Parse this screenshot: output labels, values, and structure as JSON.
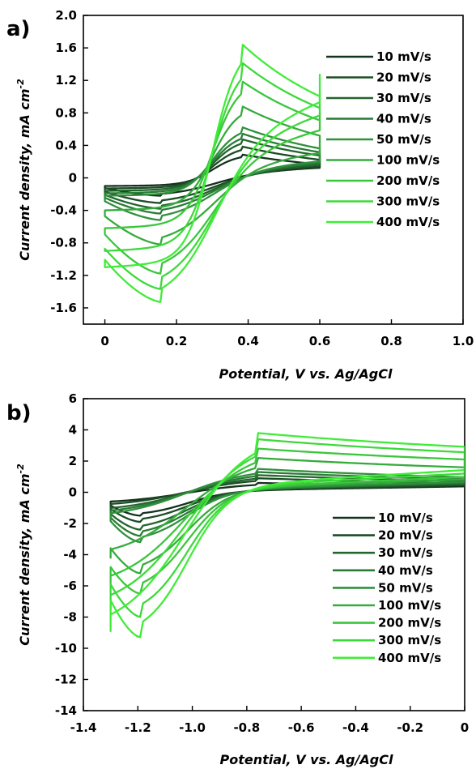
{
  "chart_data": [
    {
      "panel_label": "a)",
      "type": "line",
      "xlabel": "Potential, V vs. Ag/AgCl",
      "ylabel": "Current density, mA cm",
      "ylabel_sup": "-2",
      "xlim": [
        -0.06,
        1.0
      ],
      "ylim": [
        -1.8,
        2.0
      ],
      "xticks": [
        "0",
        "0.2",
        "0.4",
        "0.6",
        "0.8",
        "1.0"
      ],
      "xtick_values": [
        0,
        0.2,
        0.4,
        0.6,
        0.8,
        1.0
      ],
      "yticks": [
        "2.0",
        "1.6",
        "1.2",
        "0.8",
        "0.4",
        "0",
        "-0.4",
        "-0.8",
        "-1.2",
        "-1.6"
      ],
      "ytick_values": [
        2.0,
        1.6,
        1.2,
        0.8,
        0.4,
        0,
        -0.4,
        -0.8,
        -1.2,
        -1.6
      ],
      "legend_position": "right",
      "cv": {
        "E_start": 0.0,
        "E_end": 0.6,
        "E_anodic_peak": 0.38,
        "E_cathodic_peak": 0.16,
        "E_half": 0.3
      },
      "series": [
        {
          "name": "10 mV/s",
          "color": "#13321b",
          "ipa": 0.29,
          "ipc": -0.22,
          "i_start": -0.1,
          "i_end": 0.17
        },
        {
          "name": "20 mV/s",
          "color": "#1b4d24",
          "ipa": 0.39,
          "ipc": -0.31,
          "i_start": -0.13,
          "i_end": 0.19
        },
        {
          "name": "30 mV/s",
          "color": "#22652d",
          "ipa": 0.48,
          "ipc": -0.38,
          "i_start": -0.16,
          "i_end": 0.22
        },
        {
          "name": "40 mV/s",
          "color": "#297c35",
          "ipa": 0.55,
          "ipc": -0.44,
          "i_start": -0.19,
          "i_end": 0.25
        },
        {
          "name": "50 mV/s",
          "color": "#2f913c",
          "ipa": 0.63,
          "ipc": -0.52,
          "i_start": -0.22,
          "i_end": 0.28
        },
        {
          "name": "100 mV/s",
          "color": "#36ab3d",
          "ipa": 0.89,
          "ipc": -0.82,
          "i_start": -0.4,
          "i_end": 0.42
        },
        {
          "name": "200 mV/s",
          "color": "#3bc63c",
          "ipa": 1.2,
          "ipc": -1.18,
          "i_start": -0.62,
          "i_end": 0.8
        },
        {
          "name": "300 mV/s",
          "color": "#3ed93a",
          "ipa": 1.43,
          "ipc": -1.37,
          "i_start": -0.9,
          "i_end": 1.05
        },
        {
          "name": "400 mV/s",
          "color": "#40ec38",
          "ipa": 1.66,
          "ipc": -1.53,
          "i_start": -1.1,
          "i_end": 1.27
        }
      ]
    },
    {
      "panel_label": "b)",
      "type": "line",
      "xlabel": "Potential, V vs. Ag/AgCl",
      "ylabel": "Current density, mA cm",
      "ylabel_sup": "-2",
      "xlim": [
        -1.4,
        0
      ],
      "ylim": [
        -14,
        6
      ],
      "xticks": [
        "-1.4",
        "-1.2",
        "-1.0",
        "-0.8",
        "-0.6",
        "-0.4",
        "-0.2",
        "0"
      ],
      "xtick_values": [
        -1.4,
        -1.2,
        -1.0,
        -0.8,
        -0.6,
        -0.4,
        -0.2,
        0
      ],
      "yticks": [
        "6",
        "4",
        "2",
        "0",
        "-2",
        "-4",
        "-6",
        "-8",
        "-10",
        "-12",
        "-14"
      ],
      "ytick_values": [
        6,
        4,
        2,
        0,
        -2,
        -4,
        -6,
        -8,
        -10,
        -12,
        -14
      ],
      "legend_position": "lower-right",
      "cv": {
        "E_start": -1.3,
        "E_end": 0.0,
        "E_anodic_peak": -0.76,
        "E_cathodic_peak": -1.19,
        "E_half": -1.02
      },
      "series": [
        {
          "name": "10 mV/s",
          "color": "#13321b",
          "ipa": 0.6,
          "ipc": -1.5,
          "i_start": -0.7,
          "i_end": 0.5
        },
        {
          "name": "20 mV/s",
          "color": "#1b4d24",
          "ipa": 0.9,
          "ipc": -1.9,
          "i_start": -0.9,
          "i_end": 0.6
        },
        {
          "name": "30 mV/s",
          "color": "#22652d",
          "ipa": 1.1,
          "ipc": -2.4,
          "i_start": -1.2,
          "i_end": 0.7
        },
        {
          "name": "40 mV/s",
          "color": "#297c35",
          "ipa": 1.3,
          "ipc": -2.8,
          "i_start": -1.4,
          "i_end": 0.8
        },
        {
          "name": "50 mV/s",
          "color": "#2f913c",
          "ipa": 1.5,
          "ipc": -3.2,
          "i_start": -1.6,
          "i_end": 0.9
        },
        {
          "name": "100 mV/s",
          "color": "#36ab3d",
          "ipa": 2.2,
          "ipc": -5.2,
          "i_start": -4.2,
          "i_end": 1.1
        },
        {
          "name": "200 mV/s",
          "color": "#3bc63c",
          "ipa": 2.8,
          "ipc": -6.5,
          "i_start": -6.1,
          "i_end": 1.3
        },
        {
          "name": "300 mV/s",
          "color": "#3ed93a",
          "ipa": 3.4,
          "ipc": -8.0,
          "i_start": -7.5,
          "i_end": 1.6
        },
        {
          "name": "400 mV/s",
          "color": "#40ec38",
          "ipa": 3.8,
          "ipc": -9.3,
          "i_start": -8.9,
          "i_end": 1.9
        }
      ]
    }
  ]
}
